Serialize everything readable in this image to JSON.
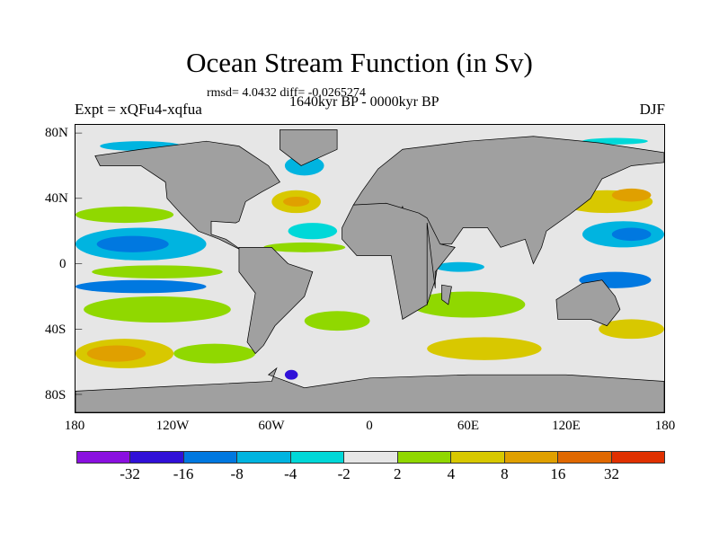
{
  "title": "Ocean Stream Function (in Sv)",
  "stats": "rmsd= 4.0432 diff= -0.0265274",
  "period": "1640kyr BP - 0000kyr BP",
  "experiment": "Expt = xQFu4-xqfua",
  "season": "DJF",
  "lat_labels": [
    "80N",
    "40N",
    "0",
    "40S",
    "80S"
  ],
  "lon_labels": [
    "180",
    "120W",
    "60W",
    "0",
    "60E",
    "120E",
    "180"
  ],
  "colorbar": {
    "colors": [
      "#8a10e0",
      "#3010d8",
      "#0078e0",
      "#00b4e0",
      "#00d8d8",
      "#e6e6e6",
      "#90d800",
      "#d8c800",
      "#e0a000",
      "#e06800",
      "#e03000"
    ],
    "labels": [
      "-32",
      "-16",
      "-8",
      "-4",
      "-2",
      "2",
      "4",
      "8",
      "16",
      "32"
    ]
  },
  "land_color": "#a0a0a0",
  "ocean_background": "#e6e6e6"
}
